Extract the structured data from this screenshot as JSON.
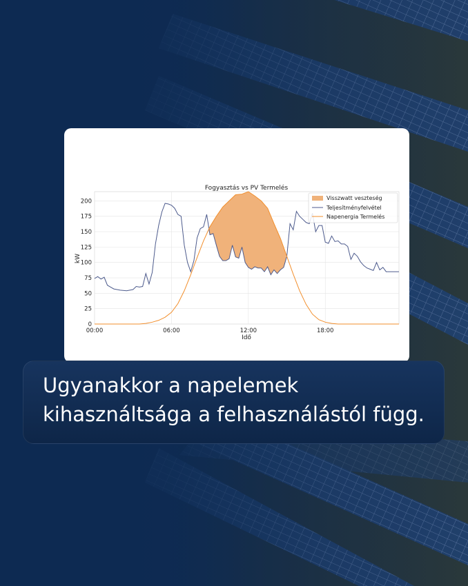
{
  "caption": {
    "line1": "Ugyanakkor a napelemek",
    "line2": "kihasználtsága a felhasználástól függ."
  },
  "colors": {
    "consumption": "#4c5a8c",
    "pv": "#f28e2b",
    "loss_fill": "#f0b27a"
  },
  "chart_data": {
    "type": "line",
    "title": "Fogyasztás vs PV Termelés",
    "xlabel": "Idő",
    "ylabel": "kW",
    "xlim": [
      0,
      23.75
    ],
    "ylim": [
      0,
      215
    ],
    "x_ticks": [
      0,
      6,
      12,
      18
    ],
    "x_tick_labels": [
      "00:00",
      "06:00",
      "12:00",
      "18:00"
    ],
    "y_ticks": [
      0,
      25,
      50,
      75,
      100,
      125,
      150,
      175,
      200
    ],
    "grid": true,
    "legend_position": "top-right",
    "legend": [
      "Visszwatt veszteség",
      "Teljesítményfelvétel",
      "Napenergia Termelés"
    ],
    "series": [
      {
        "name": "Teljesítményfelvétel",
        "x": [
          0,
          0.25,
          0.5,
          0.75,
          1,
          1.25,
          1.5,
          1.75,
          2,
          2.5,
          3,
          3.25,
          3.5,
          3.75,
          4,
          4.25,
          4.5,
          4.75,
          5,
          5.25,
          5.5,
          5.75,
          6,
          6.25,
          6.5,
          6.75,
          7,
          7.25,
          7.5,
          7.75,
          8,
          8.25,
          8.5,
          8.75,
          9,
          9.25,
          9.5,
          9.75,
          10,
          10.25,
          10.5,
          10.75,
          11,
          11.25,
          11.5,
          11.75,
          12,
          12.25,
          12.5,
          12.75,
          13,
          13.25,
          13.5,
          13.75,
          14,
          14.25,
          14.5,
          14.75,
          15,
          15.25,
          15.5,
          15.75,
          16,
          16.25,
          16.5,
          16.75,
          17,
          17.25,
          17.5,
          17.75,
          18,
          18.25,
          18.5,
          18.75,
          19,
          19.25,
          19.5,
          19.75,
          20,
          20.25,
          20.5,
          20.75,
          21,
          21.25,
          21.5,
          21.75,
          22,
          22.25,
          22.5,
          22.75,
          23,
          23.25,
          23.5,
          23.75
        ],
        "values": [
          74,
          77,
          73,
          76,
          63,
          60,
          57,
          56,
          55,
          54,
          56,
          61,
          60,
          61,
          82,
          65,
          84,
          130,
          160,
          182,
          196,
          195,
          193,
          188,
          178,
          175,
          128,
          100,
          85,
          103,
          140,
          155,
          158,
          178,
          145,
          147,
          128,
          110,
          103,
          103,
          106,
          128,
          109,
          107,
          125,
          100,
          92,
          89,
          93,
          91,
          91,
          85,
          93,
          80,
          88,
          82,
          88,
          92,
          110,
          163,
          153,
          183,
          175,
          170,
          165,
          163,
          180,
          150,
          160,
          160,
          133,
          131,
          143,
          134,
          135,
          130,
          130,
          126,
          105,
          115,
          110,
          101,
          95,
          91,
          89,
          87,
          100,
          88,
          92,
          85,
          85,
          85,
          85,
          85
        ]
      },
      {
        "name": "Napenergia Termelés",
        "x": [
          0,
          3.5,
          4,
          4.5,
          5,
          5.5,
          6,
          6.5,
          7,
          7.5,
          8,
          8.5,
          9,
          9.5,
          10,
          10.5,
          11,
          11.5,
          12,
          12.5,
          13,
          13.5,
          14,
          14.5,
          15,
          15.5,
          16,
          16.5,
          17,
          17.5,
          18,
          18.5,
          19,
          19.5,
          20,
          20.5,
          23.75
        ],
        "values": [
          0,
          0,
          1,
          3,
          6,
          11,
          19,
          33,
          54,
          80,
          108,
          135,
          158,
          175,
          190,
          200,
          210,
          211,
          215,
          208,
          200,
          188,
          163,
          139,
          110,
          81,
          54,
          32,
          16,
          7,
          3,
          1,
          0,
          0,
          0,
          0,
          0
        ]
      }
    ],
    "fill_between": {
      "name": "Visszwatt veszteség",
      "description_note": "area where Napenergia Termelés exceeds Teljesítményfelvétel"
    }
  }
}
